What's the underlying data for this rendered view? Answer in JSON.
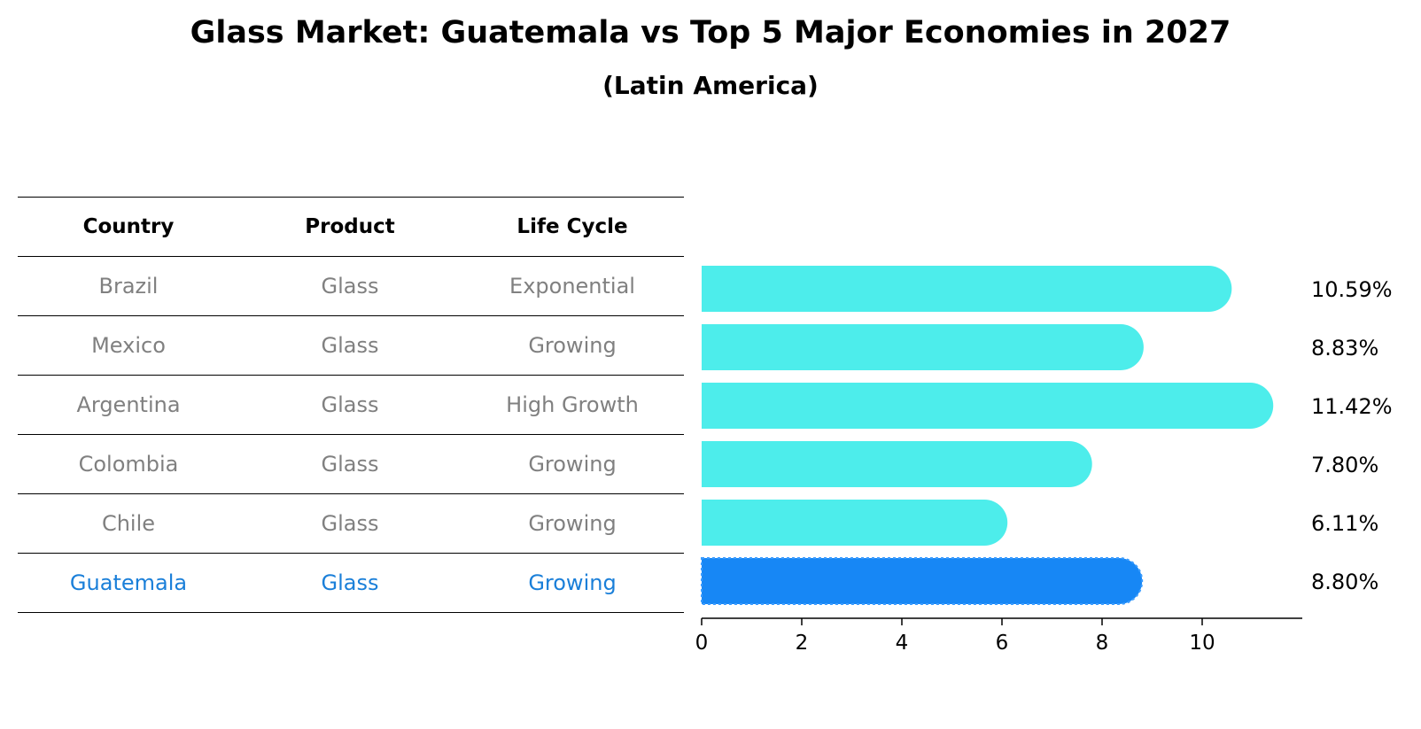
{
  "title": "Glass Market: Guatemala vs Top 5 Major Economies in 2027",
  "subtitle": "(Latin America)",
  "table": {
    "headers": [
      "Country",
      "Product",
      "Life Cycle"
    ],
    "rows": [
      {
        "country": "Brazil",
        "product": "Glass",
        "life_cycle": "Exponential"
      },
      {
        "country": "Mexico",
        "product": "Glass",
        "life_cycle": "Growing"
      },
      {
        "country": "Argentina",
        "product": "Glass",
        "life_cycle": "High Growth"
      },
      {
        "country": "Colombia",
        "product": "Glass",
        "life_cycle": "Growing"
      },
      {
        "country": "Chile",
        "product": "Glass",
        "life_cycle": "Growing"
      },
      {
        "country": "Guatemala",
        "product": "Glass",
        "life_cycle": "Growing"
      }
    ]
  },
  "colors": {
    "bar": "#4DEDEB",
    "highlight_bar": "#1787F5",
    "row_text": "#808080",
    "highlight_text": "#1A7FD9"
  },
  "chart_data": {
    "type": "bar",
    "orientation": "horizontal",
    "categories": [
      "Brazil",
      "Mexico",
      "Argentina",
      "Colombia",
      "Chile",
      "Guatemala"
    ],
    "values": [
      10.59,
      8.83,
      11.42,
      7.8,
      6.11,
      8.8
    ],
    "value_labels": [
      "10.59%",
      "8.83%",
      "11.42%",
      "7.80%",
      "6.11%",
      "8.80%"
    ],
    "highlight": "Guatemala",
    "xlim": [
      0,
      12
    ],
    "xticks": [
      0,
      2,
      4,
      6,
      8,
      10
    ],
    "xlabel": "",
    "ylabel": ""
  }
}
